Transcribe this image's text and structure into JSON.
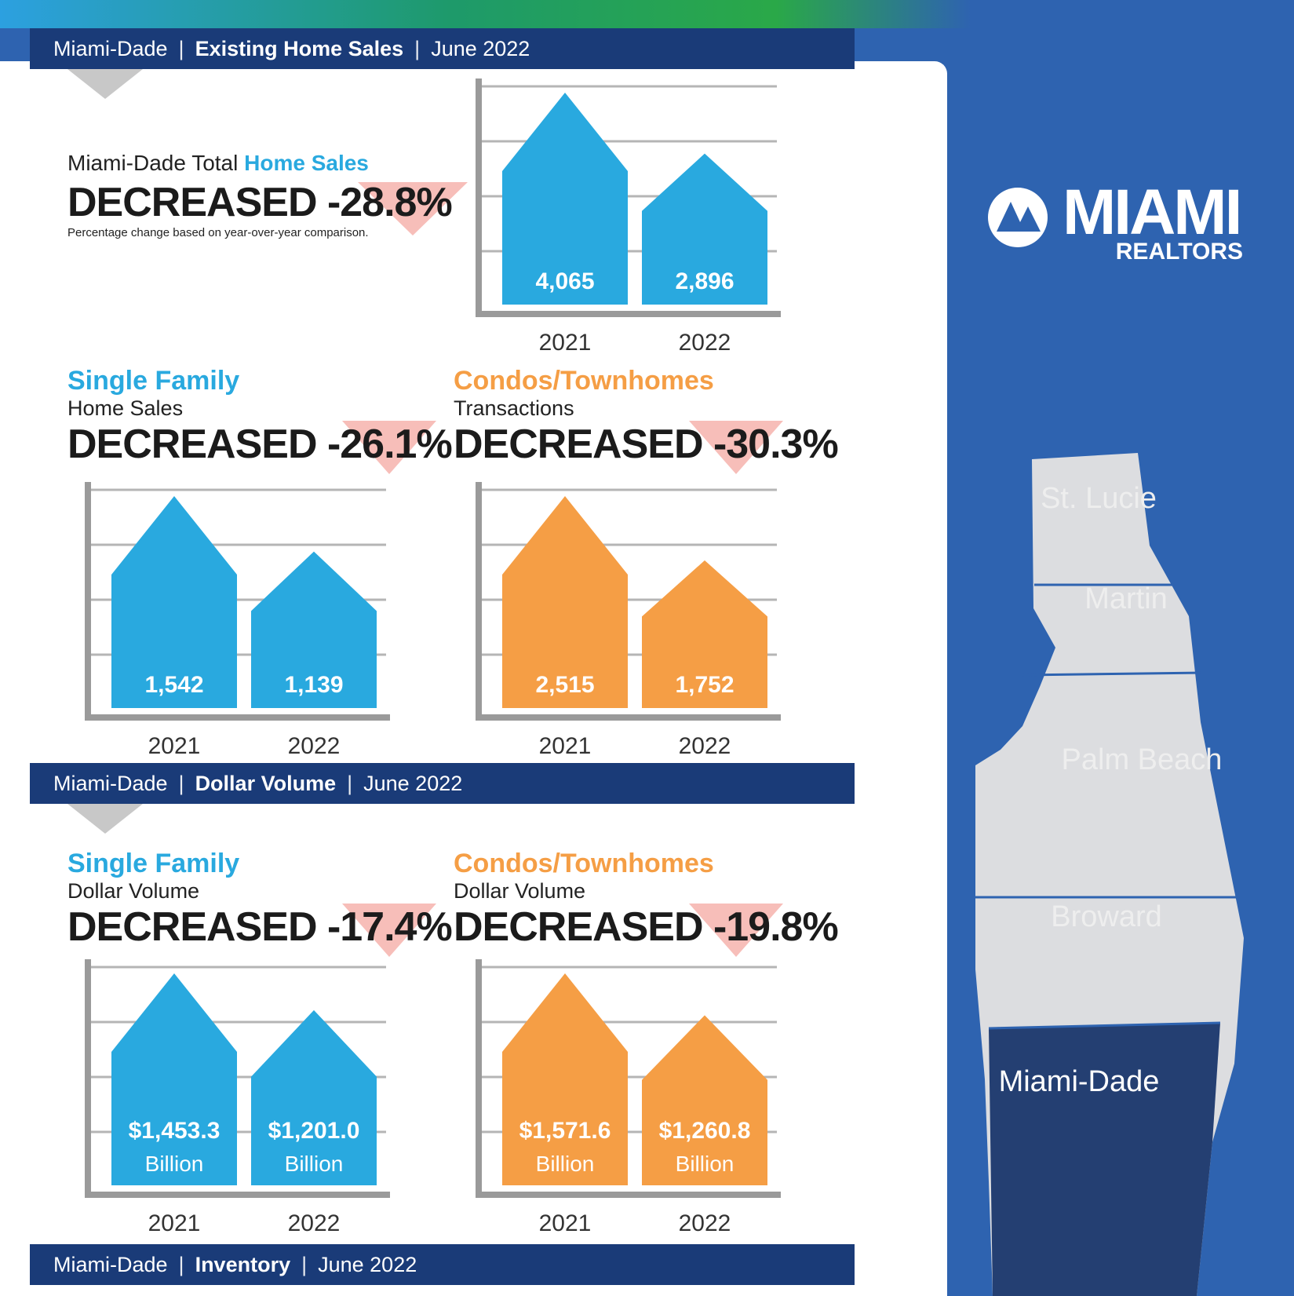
{
  "banners": [
    {
      "region": "Miami-Dade",
      "title": "Existing Home Sales",
      "period": "June 2022"
    },
    {
      "region": "Miami-Dade",
      "title": "Dollar Volume",
      "period": "June 2022"
    },
    {
      "region": "Miami-Dade",
      "title": "Inventory",
      "period": "June 2022"
    }
  ],
  "total": {
    "heading_prefix": "Miami-Dade Total ",
    "heading_highlight": "Home Sales",
    "headline": "DECREASED -28.8%",
    "note": "Percentage change based on year-over-year comparison."
  },
  "sf_sales": {
    "category": "Single Family",
    "subtitle": "Home Sales",
    "headline": "DECREASED -26.1%"
  },
  "condo_sales": {
    "category": "Condos/Townhomes",
    "subtitle": "Transactions",
    "headline": "DECREASED -30.3%"
  },
  "sf_volume": {
    "category": "Single Family",
    "subtitle": "Dollar Volume",
    "headline": "DECREASED -17.4%"
  },
  "condo_volume": {
    "category": "Condos/Townhomes",
    "subtitle": "Dollar Volume",
    "headline": "DECREASED -19.8%"
  },
  "logo": {
    "word": "MIAMI",
    "sub": "REALTORS"
  },
  "map": {
    "counties": [
      "St. Lucie",
      "Martin",
      "Palm Beach",
      "Broward",
      "Miami-Dade"
    ],
    "highlighted": "Miami-Dade"
  },
  "colors": {
    "blue": "#29a9df",
    "orange": "#f59e45",
    "navy": "#1a3b78",
    "background": "#2e63b0"
  },
  "chart_data": [
    {
      "type": "bar",
      "categories": [
        "2021",
        "2022"
      ],
      "values": [
        4065,
        2896
      ],
      "labels": [
        "4,065",
        "2,896"
      ],
      "sublabels": [
        "",
        ""
      ],
      "color": "#29a9df"
    },
    {
      "type": "bar",
      "categories": [
        "2021",
        "2022"
      ],
      "values": [
        1542,
        1139
      ],
      "labels": [
        "1,542",
        "1,139"
      ],
      "sublabels": [
        "",
        ""
      ],
      "color": "#29a9df"
    },
    {
      "type": "bar",
      "categories": [
        "2021",
        "2022"
      ],
      "values": [
        2515,
        1752
      ],
      "labels": [
        "2,515",
        "1,752"
      ],
      "sublabels": [
        "",
        ""
      ],
      "color": "#f59e45"
    },
    {
      "type": "bar",
      "categories": [
        "2021",
        "2022"
      ],
      "values": [
        1453.3,
        1201.0
      ],
      "labels": [
        "$1,453.3",
        "$1,201.0"
      ],
      "sublabels": [
        "Billion",
        "Billion"
      ],
      "color": "#29a9df"
    },
    {
      "type": "bar",
      "categories": [
        "2021",
        "2022"
      ],
      "values": [
        1571.6,
        1260.8
      ],
      "labels": [
        "$1,571.6",
        "$1,260.8"
      ],
      "sublabels": [
        "Billion",
        "Billion"
      ],
      "color": "#f59e45"
    }
  ]
}
